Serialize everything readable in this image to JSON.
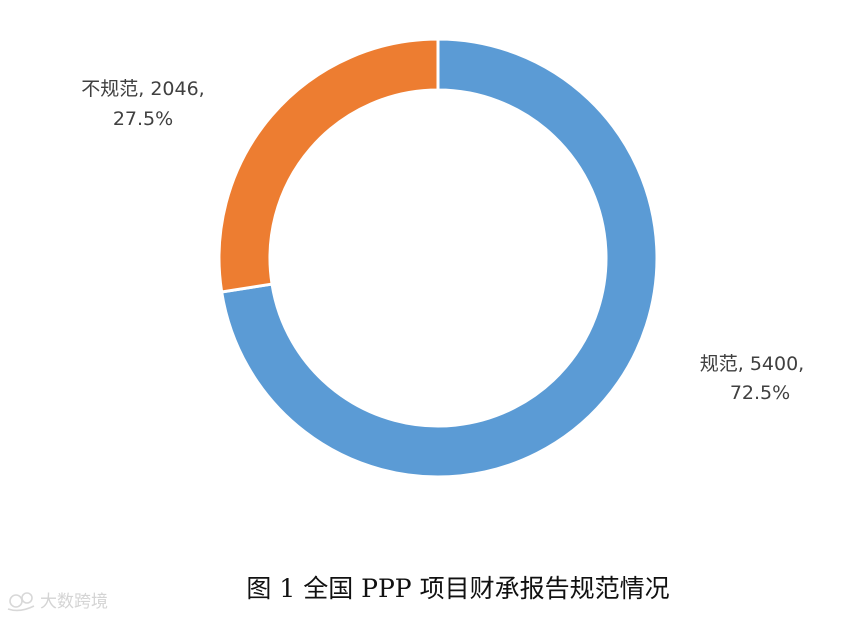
{
  "chart_data": {
    "type": "pie",
    "style": "donut",
    "title": "",
    "slices": [
      {
        "name": "规范",
        "value": 5400,
        "percent": "72.5%",
        "color": "#5B9BD5"
      },
      {
        "name": "不规范",
        "value": 2046,
        "percent": "27.5%",
        "color": "#ED7D31"
      }
    ],
    "start_angle_deg": 0,
    "direction": "clockwise",
    "labels": [
      {
        "line1": "规范, 5400,",
        "line2": "72.5%"
      },
      {
        "line1": "不规范, 2046,",
        "line2": "27.5%"
      }
    ]
  },
  "caption": "图 1 全国 PPP 项目财承报告规范情况",
  "watermark": "大数跨境",
  "colors": {
    "background": "#FFFFFF",
    "separator": "#FFFFFF"
  }
}
